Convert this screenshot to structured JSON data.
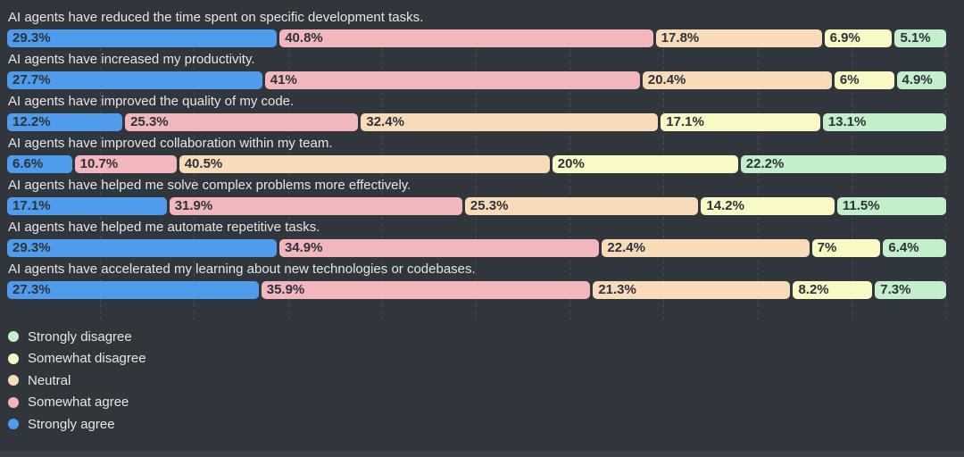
{
  "chart_data": {
    "type": "bar",
    "variant": "horizontal-stacked",
    "units": "%",
    "background_color": "#31363c",
    "statement_text_color": "#e4e6e8",
    "value_label_color": "#2e333a",
    "grid": {
      "show": true,
      "orientation": "vertical",
      "style": "dashed",
      "interval_pct": 10,
      "color": "rgba(255,255,255,0.13)"
    },
    "categories_in_bar_order": [
      "Strongly agree",
      "Somewhat agree",
      "Neutral",
      "Somewhat disagree",
      "Strongly disagree"
    ],
    "segment_colors_in_bar_order": [
      "#4e9ceb",
      "#f2b6bd",
      "#f8dbb8",
      "#f9f9c5",
      "#c3efcd"
    ],
    "xlim": [
      0,
      100
    ],
    "rows": [
      {
        "statement": "AI agents have reduced the time spent on specific development tasks.",
        "values": [
          29.3,
          40.8,
          17.8,
          6.9,
          5.1
        ],
        "display": [
          "29.3%",
          "40.8%",
          "17.8%",
          "6.9%",
          "5.1%"
        ]
      },
      {
        "statement": "AI agents have increased my productivity.",
        "values": [
          27.7,
          41,
          20.4,
          6,
          4.9
        ],
        "display": [
          "27.7%",
          "41%",
          "20.4%",
          "6%",
          "4.9%"
        ]
      },
      {
        "statement": "AI agents have improved the quality of my code.",
        "values": [
          12.2,
          25.3,
          32.4,
          17.1,
          13.1
        ],
        "display": [
          "12.2%",
          "25.3%",
          "32.4%",
          "17.1%",
          "13.1%"
        ]
      },
      {
        "statement": "AI agents have improved collaboration within my team.",
        "values": [
          6.6,
          10.7,
          40.5,
          20,
          22.2
        ],
        "display": [
          "6.6%",
          "10.7%",
          "40.5%",
          "20%",
          "22.2%"
        ]
      },
      {
        "statement": "AI agents have helped me solve complex problems more effectively.",
        "values": [
          17.1,
          31.9,
          25.3,
          14.2,
          11.5
        ],
        "display": [
          "17.1%",
          "31.9%",
          "25.3%",
          "14.2%",
          "11.5%"
        ]
      },
      {
        "statement": "AI agents have helped me automate repetitive tasks.",
        "values": [
          29.3,
          34.9,
          22.4,
          7,
          6.4
        ],
        "display": [
          "29.3%",
          "34.9%",
          "22.4%",
          "7%",
          "6.4%"
        ]
      },
      {
        "statement": "AI agents have accelerated my learning about new technologies or codebases.",
        "values": [
          27.3,
          35.9,
          21.3,
          8.2,
          7.3
        ],
        "display": [
          "27.3%",
          "35.9%",
          "21.3%",
          "8.2%",
          "7.3%"
        ]
      }
    ],
    "legend": {
      "position": "bottom-left",
      "items": [
        {
          "label": "Strongly disagree",
          "color": "#c3efcd"
        },
        {
          "label": "Somewhat disagree",
          "color": "#f9f9c5"
        },
        {
          "label": "Neutral",
          "color": "#f8dbb8"
        },
        {
          "label": "Somewhat agree",
          "color": "#f2b6bd"
        },
        {
          "label": "Strongly agree",
          "color": "#4e9ceb"
        }
      ]
    }
  }
}
